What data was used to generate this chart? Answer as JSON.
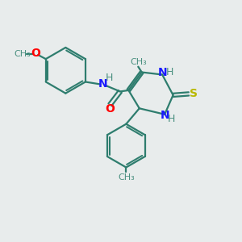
{
  "bg_color": "#e8ecec",
  "bond_color": "#2e7d6e",
  "bond_width": 1.6,
  "N_color": "#1a1aff",
  "O_color": "#ff0000",
  "S_color": "#b8b800",
  "H_color": "#4a9080",
  "figsize": [
    3.0,
    3.0
  ],
  "dpi": 100,
  "xlim": [
    0,
    10
  ],
  "ylim": [
    0,
    10
  ]
}
